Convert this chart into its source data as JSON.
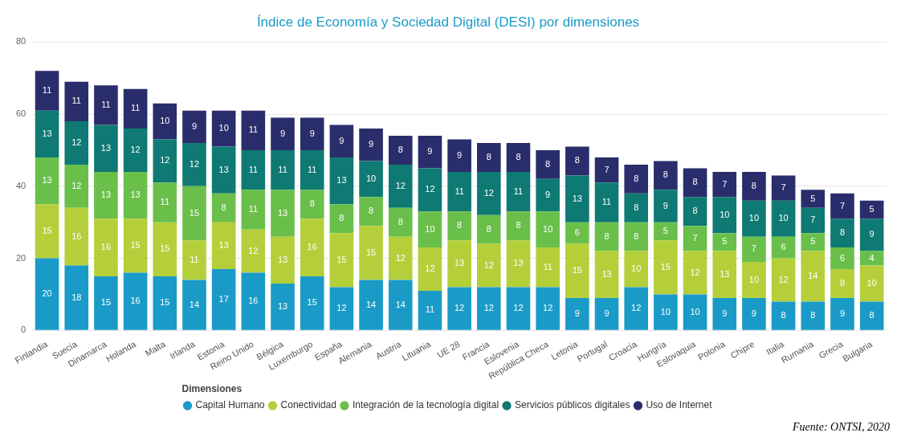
{
  "chart_data": {
    "type": "bar",
    "title": "Índice de Economía y Sociedad Digital (DESI) por dimensiones",
    "legend_title": "Dimensiones",
    "stacked": true,
    "data_labels": true,
    "grid": "y",
    "legend": "bottom",
    "ylim": [
      0,
      80
    ],
    "yticks": [
      0,
      20,
      40,
      60,
      80
    ],
    "categories": [
      "Finlandia",
      "Suecia",
      "Dinamarca",
      "Holanda",
      "Malta",
      "Irlanda",
      "Estonia",
      "Reino Unido",
      "Bélgica",
      "Luxemburgo",
      "España",
      "Alemania",
      "Austria",
      "Lituania",
      "UE 28",
      "Francia",
      "Eslovenia",
      "República Checa",
      "Letonia",
      "Portugal",
      "Croacia",
      "Hungría",
      "Eslovaquia",
      "Polonia",
      "Chipre",
      "Italia",
      "Rumania",
      "Grecia",
      "Bulgaria"
    ],
    "series": [
      {
        "name": "Capital Humano",
        "color": "#1a9bc7",
        "values": [
          20,
          18,
          15,
          16,
          15,
          14,
          17,
          16,
          13,
          15,
          12,
          14,
          14,
          11,
          12,
          12,
          12,
          12,
          9,
          9,
          12,
          10,
          10,
          9,
          9,
          8,
          8,
          9,
          8
        ]
      },
      {
        "name": "Conectividad",
        "color": "#b5cf3a",
        "values": [
          15,
          16,
          16,
          15,
          15,
          11,
          13,
          12,
          13,
          16,
          15,
          15,
          12,
          12,
          13,
          12,
          13,
          11,
          15,
          13,
          10,
          15,
          12,
          13,
          10,
          12,
          14,
          8,
          10
        ]
      },
      {
        "name": "Integración de la tecnología digital",
        "color": "#6abf4b",
        "values": [
          13,
          12,
          13,
          13,
          11,
          15,
          8,
          11,
          13,
          8,
          8,
          8,
          8,
          10,
          8,
          8,
          8,
          10,
          6,
          8,
          8,
          5,
          7,
          5,
          7,
          6,
          5,
          6,
          4
        ]
      },
      {
        "name": "Servicios públicos digitales",
        "color": "#0e7a73",
        "values": [
          13,
          12,
          13,
          12,
          12,
          12,
          13,
          11,
          11,
          11,
          13,
          10,
          12,
          12,
          11,
          12,
          11,
          9,
          13,
          11,
          8,
          9,
          8,
          10,
          10,
          10,
          7,
          8,
          9
        ]
      },
      {
        "name": "Uso de Internet",
        "color": "#2a2d6b",
        "values": [
          11,
          11,
          11,
          11,
          10,
          9,
          10,
          11,
          9,
          9,
          9,
          9,
          8,
          9,
          9,
          8,
          8,
          8,
          8,
          7,
          8,
          8,
          8,
          7,
          8,
          7,
          5,
          7,
          5
        ]
      }
    ],
    "annotations": [
      "Fuente: ONTSI, 2020"
    ]
  }
}
